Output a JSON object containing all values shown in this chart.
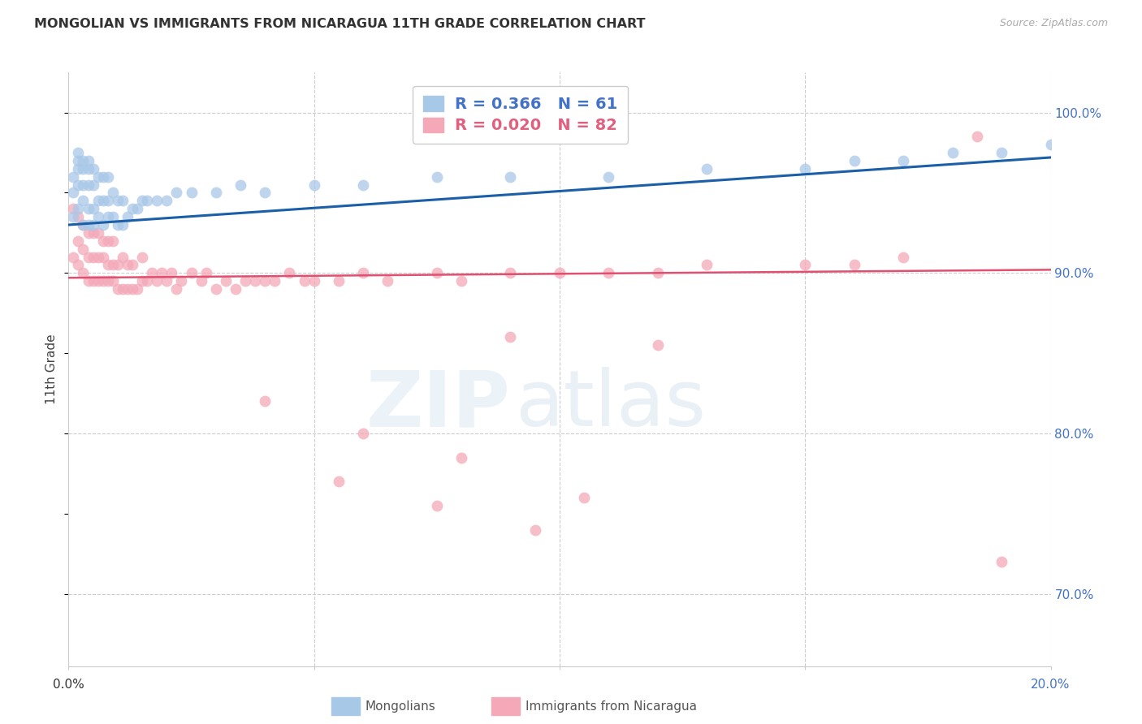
{
  "title": "MONGOLIAN VS IMMIGRANTS FROM NICARAGUA 11TH GRADE CORRELATION CHART",
  "source": "Source: ZipAtlas.com",
  "ylabel": "11th Grade",
  "xlim": [
    0.0,
    0.2
  ],
  "ylim": [
    0.655,
    1.025
  ],
  "ytick_labels": [
    "70.0%",
    "80.0%",
    "90.0%",
    "100.0%"
  ],
  "ytick_values": [
    0.7,
    0.8,
    0.9,
    1.0
  ],
  "blue_color": "#a8c8e8",
  "pink_color": "#f4a8b8",
  "blue_line_color": "#1a5fa8",
  "pink_line_color": "#e05070",
  "mon_x": [
    0.001,
    0.001,
    0.001,
    0.002,
    0.002,
    0.002,
    0.002,
    0.002,
    0.003,
    0.003,
    0.003,
    0.003,
    0.003,
    0.004,
    0.004,
    0.004,
    0.004,
    0.004,
    0.005,
    0.005,
    0.005,
    0.005,
    0.006,
    0.006,
    0.006,
    0.007,
    0.007,
    0.007,
    0.008,
    0.008,
    0.008,
    0.009,
    0.009,
    0.01,
    0.01,
    0.011,
    0.011,
    0.012,
    0.013,
    0.014,
    0.015,
    0.016,
    0.018,
    0.02,
    0.022,
    0.025,
    0.03,
    0.035,
    0.04,
    0.05,
    0.06,
    0.075,
    0.09,
    0.11,
    0.13,
    0.15,
    0.16,
    0.17,
    0.18,
    0.19,
    0.2
  ],
  "mon_y": [
    0.935,
    0.95,
    0.96,
    0.94,
    0.955,
    0.965,
    0.97,
    0.975,
    0.93,
    0.945,
    0.955,
    0.965,
    0.97,
    0.93,
    0.94,
    0.955,
    0.965,
    0.97,
    0.93,
    0.94,
    0.955,
    0.965,
    0.935,
    0.945,
    0.96,
    0.93,
    0.945,
    0.96,
    0.935,
    0.945,
    0.96,
    0.935,
    0.95,
    0.93,
    0.945,
    0.93,
    0.945,
    0.935,
    0.94,
    0.94,
    0.945,
    0.945,
    0.945,
    0.945,
    0.95,
    0.95,
    0.95,
    0.955,
    0.95,
    0.955,
    0.955,
    0.96,
    0.96,
    0.96,
    0.965,
    0.965,
    0.97,
    0.97,
    0.975,
    0.975,
    0.98
  ],
  "nic_x": [
    0.001,
    0.001,
    0.002,
    0.002,
    0.002,
    0.003,
    0.003,
    0.003,
    0.004,
    0.004,
    0.004,
    0.005,
    0.005,
    0.005,
    0.006,
    0.006,
    0.006,
    0.007,
    0.007,
    0.007,
    0.008,
    0.008,
    0.008,
    0.009,
    0.009,
    0.009,
    0.01,
    0.01,
    0.011,
    0.011,
    0.012,
    0.012,
    0.013,
    0.013,
    0.014,
    0.015,
    0.015,
    0.016,
    0.017,
    0.018,
    0.019,
    0.02,
    0.021,
    0.022,
    0.023,
    0.025,
    0.027,
    0.028,
    0.03,
    0.032,
    0.034,
    0.036,
    0.038,
    0.04,
    0.042,
    0.045,
    0.048,
    0.05,
    0.055,
    0.06,
    0.065,
    0.075,
    0.08,
    0.09,
    0.1,
    0.11,
    0.12,
    0.13,
    0.15,
    0.16,
    0.17,
    0.185,
    0.09,
    0.12,
    0.04,
    0.06,
    0.08,
    0.055,
    0.105,
    0.075,
    0.095,
    0.19
  ],
  "nic_y": [
    0.91,
    0.94,
    0.905,
    0.92,
    0.935,
    0.9,
    0.915,
    0.93,
    0.895,
    0.91,
    0.925,
    0.895,
    0.91,
    0.925,
    0.895,
    0.91,
    0.925,
    0.895,
    0.91,
    0.92,
    0.895,
    0.905,
    0.92,
    0.895,
    0.905,
    0.92,
    0.89,
    0.905,
    0.89,
    0.91,
    0.89,
    0.905,
    0.89,
    0.905,
    0.89,
    0.895,
    0.91,
    0.895,
    0.9,
    0.895,
    0.9,
    0.895,
    0.9,
    0.89,
    0.895,
    0.9,
    0.895,
    0.9,
    0.89,
    0.895,
    0.89,
    0.895,
    0.895,
    0.895,
    0.895,
    0.9,
    0.895,
    0.895,
    0.895,
    0.9,
    0.895,
    0.9,
    0.895,
    0.9,
    0.9,
    0.9,
    0.9,
    0.905,
    0.905,
    0.905,
    0.91,
    0.985,
    0.86,
    0.855,
    0.82,
    0.8,
    0.785,
    0.77,
    0.76,
    0.755,
    0.74,
    0.72
  ],
  "blue_line_x0": 0.0,
  "blue_line_x1": 0.2,
  "blue_line_y0": 0.93,
  "blue_line_y1": 0.972,
  "pink_line_x0": 0.0,
  "pink_line_x1": 0.2,
  "pink_line_y0": 0.897,
  "pink_line_y1": 0.902
}
